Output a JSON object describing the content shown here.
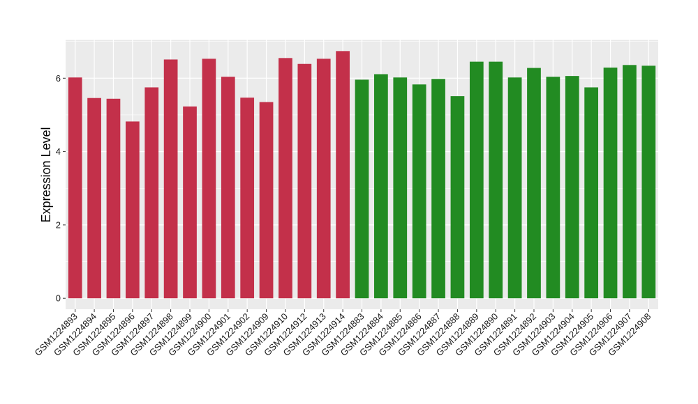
{
  "chart_data": {
    "type": "bar",
    "title": "",
    "xlabel": "",
    "ylabel": "Expression Level",
    "ylim": [
      -0.3,
      7.05
    ],
    "yticks": [
      0,
      2,
      4,
      6
    ],
    "grid": true,
    "legend": "none",
    "colors": {
      "panel_background": "#ebebeb",
      "grid": "#ffffff",
      "group_1": "#c3304a",
      "group_2": "#228b22"
    },
    "categories": [
      "GSM1224893",
      "GSM1224894",
      "GSM1224895",
      "GSM1224896",
      "GSM1224897",
      "GSM1224898",
      "GSM1224899",
      "GSM1224900",
      "GSM1224901",
      "GSM1224902",
      "GSM1224909",
      "GSM1224910",
      "GSM1224912",
      "GSM1224913",
      "GSM1224914",
      "GSM1224883",
      "GSM1224884",
      "GSM1224885",
      "GSM1224886",
      "GSM1224887",
      "GSM1224888",
      "GSM1224889",
      "GSM1224890",
      "GSM1224891",
      "GSM1224892",
      "GSM1224903",
      "GSM1224904",
      "GSM1224905",
      "GSM1224906",
      "GSM1224907",
      "GSM1224908"
    ],
    "values": [
      6.02,
      5.46,
      5.44,
      4.82,
      5.75,
      6.51,
      5.23,
      6.53,
      6.04,
      5.47,
      5.35,
      6.55,
      6.39,
      6.53,
      6.74,
      5.96,
      6.11,
      6.02,
      5.83,
      5.98,
      5.51,
      6.45,
      6.45,
      6.02,
      6.28,
      6.04,
      6.06,
      5.75,
      6.29,
      6.36,
      6.34
    ],
    "bar_groups": [
      "group_1",
      "group_1",
      "group_1",
      "group_1",
      "group_1",
      "group_1",
      "group_1",
      "group_1",
      "group_1",
      "group_1",
      "group_1",
      "group_1",
      "group_1",
      "group_1",
      "group_1",
      "group_2",
      "group_2",
      "group_2",
      "group_2",
      "group_2",
      "group_2",
      "group_2",
      "group_2",
      "group_2",
      "group_2",
      "group_2",
      "group_2",
      "group_2",
      "group_2",
      "group_2",
      "group_2"
    ]
  }
}
